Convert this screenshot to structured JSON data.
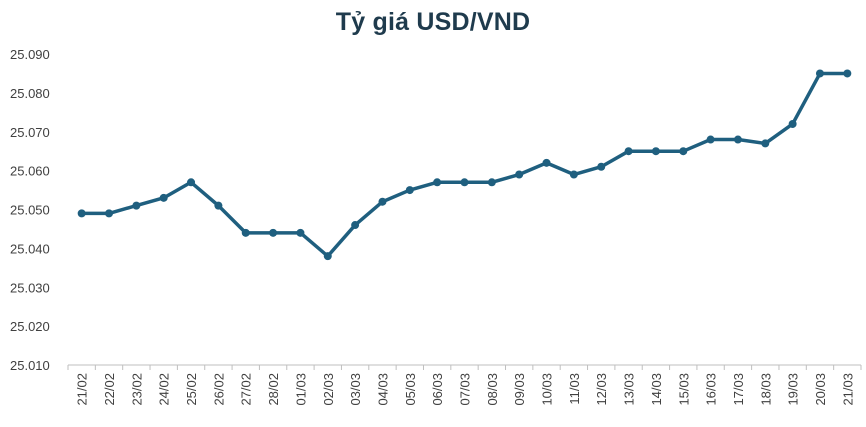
{
  "chart_data": {
    "type": "line",
    "title": "Tỷ giá USD/VND",
    "xlabel": "",
    "ylabel": "",
    "categories": [
      "21/02",
      "22/02",
      "23/02",
      "24/02",
      "25/02",
      "26/02",
      "27/02",
      "28/02",
      "01/03",
      "02/03",
      "03/03",
      "04/03",
      "05/03",
      "06/03",
      "07/03",
      "08/03",
      "09/03",
      "10/03",
      "11/03",
      "12/03",
      "13/03",
      "14/03",
      "15/03",
      "16/03",
      "17/03",
      "18/03",
      "19/03",
      "20/03",
      "21/03"
    ],
    "series": [
      {
        "values": [
          25049,
          25049,
          25051,
          25053,
          25057,
          25051,
          25044,
          25044,
          25044,
          25038,
          25046,
          25052,
          25055,
          25057,
          25057,
          25057,
          25059,
          25062,
          25059,
          25061,
          25065,
          25065,
          25065,
          25068,
          25068,
          25067,
          25072,
          25085,
          25085
        ],
        "color": "#1f5f7f"
      }
    ],
    "ylim": [
      25010,
      25090
    ],
    "yticks": [
      25010,
      25020,
      25030,
      25040,
      25050,
      25060,
      25070,
      25080,
      25090
    ],
    "ytick_labels": [
      "25.010",
      "25.020",
      "25.030",
      "25.040",
      "25.050",
      "25.060",
      "25.070",
      "25.080",
      "25.090"
    ],
    "grid": false,
    "legend": "none"
  }
}
